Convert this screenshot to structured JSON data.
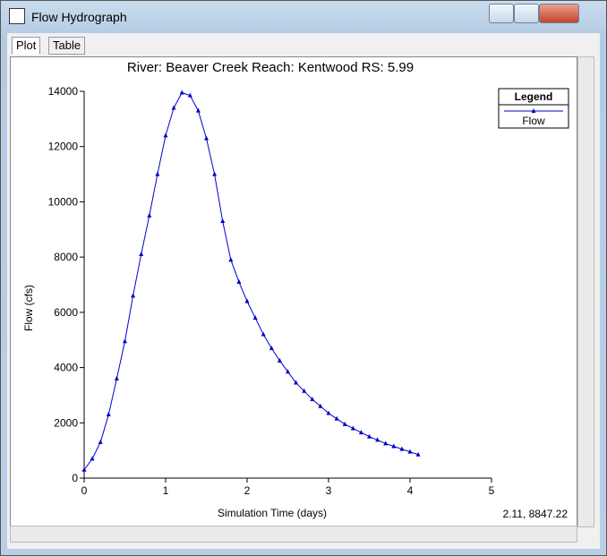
{
  "window": {
    "title": "Flow Hydrograph",
    "tabs": [
      "Plot",
      "Table"
    ],
    "status": "2.11, 8847.22"
  },
  "chart_data": {
    "type": "line",
    "title": "River: Beaver Creek  Reach: Kentwood  RS: 5.99",
    "x_label": "Simulation Time (days)",
    "y_label": "Flow  (cfs)",
    "legend_title": "Legend",
    "legend": "upper right",
    "x": [
      0,
      0.1,
      0.2,
      0.3,
      0.4,
      0.5,
      0.6,
      0.7,
      0.8,
      0.9,
      1.0,
      1.1,
      1.2,
      1.3,
      1.4,
      1.5,
      1.6,
      1.7,
      1.8,
      1.9,
      2.0,
      2.1,
      2.2,
      2.3,
      2.4,
      2.5,
      2.6,
      2.7,
      2.8,
      2.9,
      3.0,
      3.1,
      3.2,
      3.3,
      3.4,
      3.5,
      3.6,
      3.7,
      3.8,
      3.9,
      4.0,
      4.1
    ],
    "series": [
      {
        "name": "Flow",
        "color": "#0000cc",
        "values": [
          300,
          700,
          1300,
          2300,
          3600,
          4950,
          6600,
          8100,
          9500,
          11000,
          12400,
          13400,
          13950,
          13850,
          13300,
          12300,
          11000,
          9300,
          7900,
          7100,
          6400,
          5800,
          5200,
          4700,
          4250,
          3850,
          3450,
          3150,
          2850,
          2600,
          2350,
          2150,
          1950,
          1800,
          1650,
          1500,
          1380,
          1250,
          1150,
          1050,
          950,
          850
        ]
      }
    ],
    "xlim": [
      0,
      5
    ],
    "xticks": [
      0,
      1,
      2,
      3,
      4,
      5
    ],
    "ylim": [
      0,
      14000
    ],
    "yticks": [
      0,
      2000,
      4000,
      6000,
      8000,
      10000,
      12000,
      14000
    ]
  }
}
